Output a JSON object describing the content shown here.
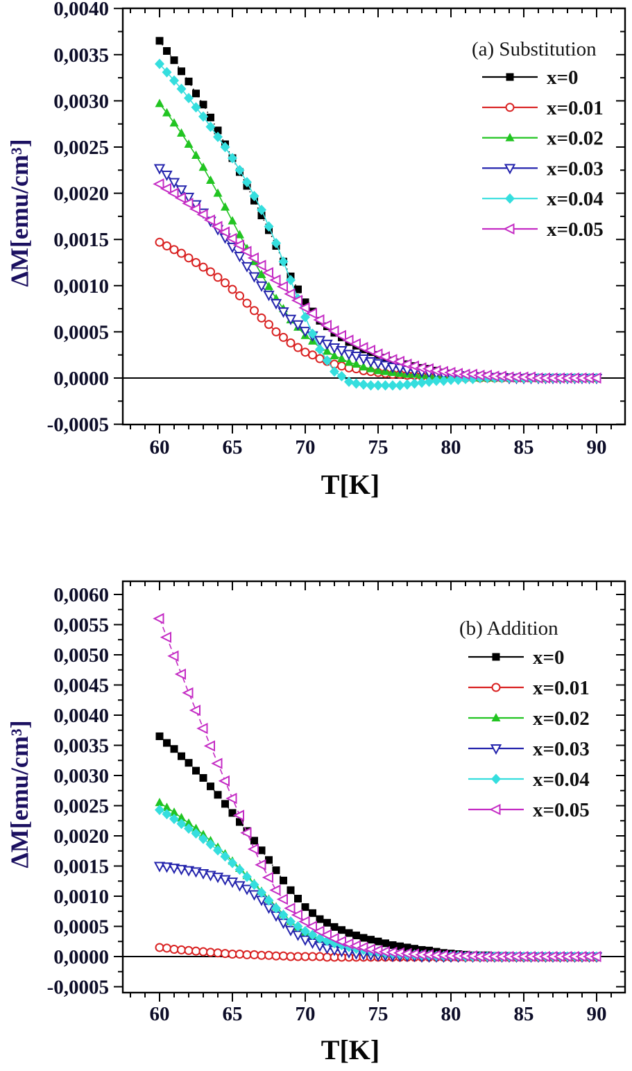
{
  "figure": {
    "background": "#ffffff",
    "frame_color": "#000000"
  },
  "chart_data": [
    {
      "type": "line",
      "panel_label": "(a) Substitution",
      "xlabel": "T[K]",
      "ylabel": "ΔM[emu/cm³]",
      "x_start": 60,
      "x_step": 0.5,
      "y_scale": 1e-05,
      "xticks": {
        "major": [
          60,
          65,
          70,
          75,
          80,
          85,
          90
        ],
        "labels": [
          "60",
          "65",
          "70",
          "75",
          "80",
          "85",
          "90"
        ],
        "minor_step": 1
      },
      "yticks": {
        "major": [
          0.004,
          0.0035,
          0.003,
          0.0025,
          0.002,
          0.0015,
          0.001,
          0.0005,
          0.0,
          -0.0005
        ],
        "labels": [
          "0,0040",
          "0,0035",
          "0,0030",
          "0,0025",
          "0,0020",
          "0,0015",
          "0,0010",
          "0,0005",
          "0,0000",
          "-0,0005"
        ],
        "minor_step": 0.00025
      },
      "zero_line": true,
      "series": [
        {
          "name": "x=0",
          "color": "#000000",
          "marker": "square",
          "style": "filled",
          "line": "dot",
          "values": [
            365,
            354,
            344,
            332,
            321,
            308,
            296,
            282,
            268,
            253,
            238,
            223,
            208,
            192,
            176,
            160,
            143,
            126,
            110,
            96,
            82,
            72,
            62,
            56,
            49,
            44,
            39,
            35,
            31,
            28,
            25,
            22,
            19,
            17,
            15,
            13,
            11,
            10,
            8,
            6,
            5,
            4,
            3,
            2,
            2,
            2,
            1,
            1,
            1,
            0,
            0,
            0,
            0,
            0,
            0,
            0,
            0,
            0,
            0,
            0,
            0
          ]
        },
        {
          "name": "x=0.01",
          "color": "#d92121",
          "marker": "circle",
          "style": "open",
          "line": "solid",
          "values": [
            147,
            143,
            139,
            135,
            130,
            125,
            120,
            115,
            109,
            103,
            96,
            89,
            81,
            73,
            65,
            58,
            50,
            44,
            38,
            33,
            28,
            25,
            21,
            18,
            15,
            13,
            11,
            10,
            8,
            7,
            6,
            5,
            4,
            4,
            3,
            3,
            2,
            2,
            1,
            1,
            1,
            1,
            0,
            0,
            0,
            0,
            0,
            0,
            0,
            0,
            0,
            0,
            0,
            0,
            0,
            0,
            0,
            0,
            0,
            0,
            0
          ]
        },
        {
          "name": "x=0.02",
          "color": "#21c421",
          "marker": "triangle-up",
          "style": "filled",
          "line": "solid",
          "values": [
            297,
            287,
            276,
            265,
            253,
            241,
            228,
            214,
            200,
            185,
            170,
            155,
            140,
            126,
            112,
            99,
            86,
            75,
            63,
            55,
            46,
            40,
            33,
            29,
            24,
            21,
            17,
            15,
            12,
            10,
            8,
            7,
            6,
            5,
            4,
            4,
            3,
            3,
            2,
            2,
            1,
            1,
            1,
            1,
            0,
            0,
            0,
            0,
            0,
            0,
            0,
            0,
            0,
            0,
            0,
            0,
            0,
            0,
            0,
            0,
            0
          ]
        },
        {
          "name": "x=0.03",
          "color": "#2424ad",
          "marker": "triangle-down",
          "style": "open",
          "line": "solid",
          "values": [
            227,
            220,
            212,
            204,
            196,
            188,
            179,
            170,
            161,
            152,
            142,
            132,
            121,
            110,
            100,
            90,
            81,
            72,
            64,
            58,
            51,
            46,
            41,
            37,
            33,
            30,
            26,
            24,
            21,
            18,
            16,
            14,
            12,
            11,
            9,
            8,
            7,
            6,
            5,
            4,
            3,
            3,
            2,
            2,
            1,
            1,
            1,
            1,
            0,
            0,
            0,
            0,
            0,
            0,
            0,
            0,
            0,
            0,
            0,
            0,
            0
          ]
        },
        {
          "name": "x=0.04",
          "color": "#35dede",
          "marker": "diamond",
          "style": "filled",
          "line": "solid",
          "values": [
            340,
            331,
            322,
            313,
            303,
            293,
            283,
            272,
            261,
            250,
            238,
            225,
            212,
            197,
            182,
            164,
            146,
            126,
            106,
            86,
            66,
            48,
            31,
            19,
            7,
            2,
            -4,
            -6,
            -7,
            -8,
            -8,
            -8,
            -8,
            -8,
            -7,
            -6,
            -5,
            -4,
            -3,
            -3,
            -2,
            -2,
            -1,
            -1,
            0,
            0,
            0,
            0,
            0,
            0,
            0,
            0,
            0,
            0,
            0,
            0,
            0,
            0,
            0,
            0,
            0
          ]
        },
        {
          "name": "x=0.05",
          "color": "#c42bc4",
          "marker": "triangle-left",
          "style": "open",
          "line": "solid",
          "values": [
            210,
            205,
            200,
            195,
            189,
            183,
            177,
            171,
            164,
            158,
            151,
            144,
            137,
            130,
            122,
            114,
            106,
            99,
            91,
            84,
            76,
            70,
            63,
            57,
            51,
            46,
            41,
            37,
            33,
            30,
            26,
            23,
            20,
            18,
            15,
            13,
            11,
            10,
            8,
            7,
            6,
            5,
            4,
            4,
            3,
            3,
            2,
            2,
            1,
            1,
            1,
            1,
            0,
            0,
            0,
            0,
            0,
            0,
            0,
            0,
            0
          ]
        }
      ]
    },
    {
      "type": "line",
      "panel_label": "(b) Addition",
      "xlabel": "T[K]",
      "ylabel": "ΔM[emu/cm³]",
      "x_start": 60,
      "x_step": 0.5,
      "y_scale": 1e-05,
      "xticks": {
        "major": [
          60,
          65,
          70,
          75,
          80,
          85,
          90
        ],
        "labels": [
          "60",
          "65",
          "70",
          "75",
          "80",
          "85",
          "90"
        ],
        "minor_step": 1
      },
      "yticks": {
        "major": [
          0.006,
          0.0055,
          0.005,
          0.0045,
          0.004,
          0.0035,
          0.003,
          0.0025,
          0.002,
          0.0015,
          0.001,
          0.0005,
          0.0,
          -0.0005
        ],
        "labels": [
          "0,0060",
          "0,0055",
          "0,0050",
          "0,0045",
          "0,0040",
          "0,0035",
          "0,0030",
          "0,0025",
          "0,0020",
          "0,0015",
          "0,0010",
          "0,0005",
          "0,0000",
          "-0,0005"
        ],
        "minor_step": 0.00025
      },
      "zero_line": true,
      "series": [
        {
          "name": "x=0",
          "color": "#000000",
          "marker": "square",
          "style": "filled",
          "line": "dot",
          "values": [
            365,
            354,
            344,
            332,
            321,
            308,
            296,
            282,
            268,
            253,
            238,
            223,
            208,
            192,
            176,
            160,
            143,
            126,
            110,
            96,
            82,
            72,
            62,
            56,
            49,
            44,
            39,
            35,
            31,
            28,
            25,
            22,
            19,
            17,
            15,
            13,
            11,
            10,
            8,
            6,
            5,
            4,
            3,
            2,
            2,
            2,
            1,
            1,
            1,
            0,
            0,
            0,
            0,
            0,
            0,
            0,
            0,
            0,
            0,
            0,
            0
          ]
        },
        {
          "name": "x=0.01",
          "color": "#d92121",
          "marker": "circle",
          "style": "open",
          "line": "solid",
          "values": [
            15,
            14,
            12,
            11,
            10,
            9,
            8,
            7,
            6,
            5,
            4,
            4,
            3,
            3,
            2,
            2,
            1,
            1,
            0,
            0,
            0,
            0,
            0,
            -1,
            -1,
            -1,
            -1,
            -1,
            -1,
            -1,
            -1,
            -1,
            -1,
            -1,
            -1,
            -1,
            -1,
            -1,
            -1,
            -1,
            -1,
            -1,
            -1,
            -1,
            -1,
            -1,
            -1,
            -1,
            -1,
            -1,
            -1,
            -1,
            -1,
            -1,
            -1,
            -1,
            -1,
            -1,
            -1,
            -1,
            -1
          ]
        },
        {
          "name": "x=0.02",
          "color": "#21c421",
          "marker": "triangle-up",
          "style": "filled",
          "line": "solid",
          "values": [
            255,
            247,
            239,
            230,
            221,
            212,
            202,
            192,
            181,
            170,
            158,
            146,
            134,
            121,
            108,
            95,
            82,
            70,
            58,
            49,
            40,
            34,
            28,
            23,
            19,
            16,
            13,
            11,
            9,
            7,
            6,
            5,
            4,
            4,
            3,
            3,
            2,
            2,
            1,
            1,
            1,
            1,
            0,
            0,
            0,
            0,
            0,
            0,
            0,
            0,
            0,
            0,
            0,
            0,
            0,
            0,
            0,
            0,
            0,
            0,
            0
          ]
        },
        {
          "name": "x=0.03",
          "color": "#2424ad",
          "marker": "triangle-down",
          "style": "open",
          "line": "solid",
          "values": [
            150,
            149,
            147,
            145,
            143,
            141,
            138,
            135,
            132,
            128,
            124,
            118,
            112,
            103,
            94,
            81,
            68,
            56,
            44,
            36,
            28,
            23,
            18,
            14,
            11,
            9,
            7,
            5,
            4,
            3,
            2,
            2,
            1,
            1,
            1,
            1,
            0,
            0,
            0,
            0,
            0,
            0,
            0,
            0,
            0,
            0,
            0,
            0,
            0,
            0,
            0,
            0,
            0,
            0,
            0,
            0,
            0,
            0,
            0,
            0,
            0
          ]
        },
        {
          "name": "x=0.04",
          "color": "#35dede",
          "marker": "diamond",
          "style": "filled",
          "line": "solid",
          "values": [
            243,
            236,
            228,
            220,
            212,
            204,
            195,
            186,
            176,
            166,
            155,
            144,
            132,
            119,
            106,
            93,
            80,
            69,
            58,
            50,
            42,
            36,
            30,
            26,
            22,
            19,
            16,
            13,
            11,
            9,
            8,
            6,
            5,
            4,
            3,
            3,
            2,
            2,
            1,
            1,
            1,
            1,
            0,
            0,
            0,
            0,
            0,
            0,
            0,
            0,
            0,
            0,
            0,
            0,
            0,
            0,
            0,
            0,
            0,
            0,
            0
          ]
        },
        {
          "name": "x=0.05",
          "color": "#c42bc4",
          "marker": "triangle-left",
          "style": "open",
          "line": "dash",
          "values": [
            560,
            529,
            498,
            468,
            437,
            408,
            378,
            349,
            320,
            291,
            262,
            234,
            205,
            178,
            152,
            131,
            110,
            95,
            80,
            69,
            58,
            50,
            42,
            36,
            30,
            25,
            21,
            18,
            15,
            12,
            10,
            8,
            7,
            6,
            5,
            4,
            3,
            3,
            2,
            2,
            1,
            1,
            1,
            1,
            0,
            0,
            0,
            0,
            0,
            0,
            0,
            0,
            0,
            0,
            0,
            0,
            0,
            0,
            0,
            0,
            0
          ]
        }
      ]
    }
  ]
}
